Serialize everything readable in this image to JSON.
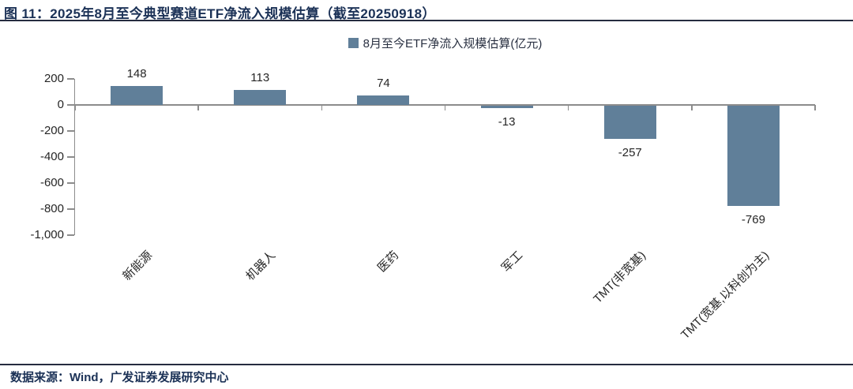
{
  "page": {
    "title": "图 11：2025年8月至今典型赛道ETF净流入规模估算（截至20250918）",
    "source_note": "数据来源：Wind，广发证券发展研究中心"
  },
  "chart_data": {
    "type": "bar",
    "title": "图 11：2025年8月至今典型赛道ETF净流入规模估算（截至20250918）",
    "legend": [
      {
        "label": "8月至今ETF净流入规模估算(亿元)",
        "color": "#607f99"
      }
    ],
    "legend_position": "top-center",
    "categories": [
      "新能源",
      "机器人",
      "医药",
      "军工",
      "TMT(非宽基)",
      "TMT(宽基,以科创为主)"
    ],
    "series": [
      {
        "name": "8月至今ETF净流入规模估算(亿元)",
        "values": [
          148,
          113,
          74,
          -13,
          -257,
          -769
        ]
      }
    ],
    "data_labels": [
      "148",
      "113",
      "74",
      "-13",
      "-257",
      "-769"
    ],
    "xlabel": "",
    "ylabel": "",
    "ylim": [
      -1000,
      200
    ],
    "yticks": [
      200,
      0,
      -200,
      -400,
      -600,
      -800,
      -1000
    ],
    "ytick_labels": [
      "200",
      "0",
      "-200",
      "-400",
      "-600",
      "-800",
      "-1,000"
    ],
    "grid": false,
    "x_label_rotation_deg": 45,
    "bar_color": "#607f99"
  },
  "colors": {
    "navy": "#1b3156",
    "rule": "#262c3f",
    "axis": "#8c8c8c",
    "text": "#262626",
    "bar": "#607f99"
  }
}
